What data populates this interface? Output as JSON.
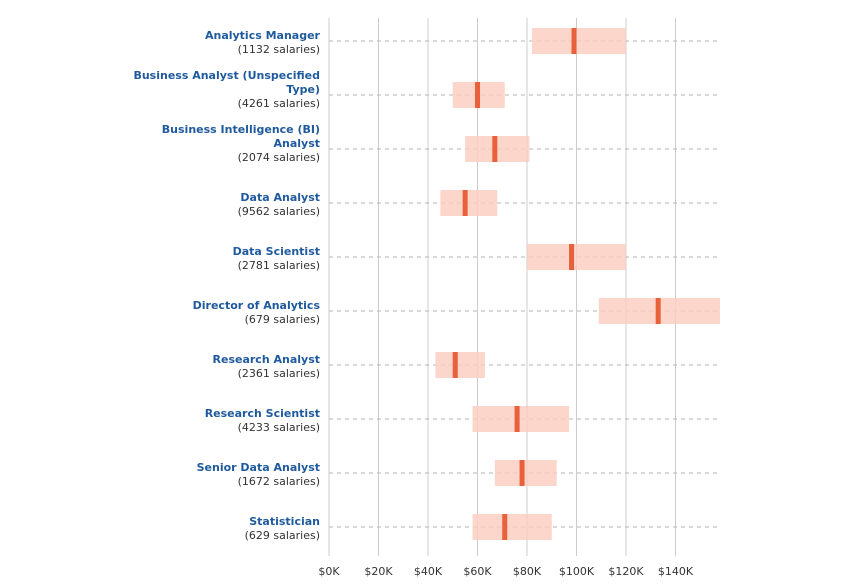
{
  "colors": {
    "range": "#fbcfc2",
    "median": "#e8613a",
    "title_text": "#1f5a9e",
    "grid": "#cccccc",
    "dashed_line": "#b5b5b5"
  },
  "chart_data": {
    "type": "range-bar",
    "xlim": [
      0,
      158000
    ],
    "xticks": [
      {
        "value": 0,
        "label": "$0K"
      },
      {
        "value": 20000,
        "label": "$20K"
      },
      {
        "value": 40000,
        "label": "$40K"
      },
      {
        "value": 60000,
        "label": "$60K"
      },
      {
        "value": 80000,
        "label": "$80K"
      },
      {
        "value": 100000,
        "label": "$100K"
      },
      {
        "value": 120000,
        "label": "$120K"
      },
      {
        "value": 140000,
        "label": "$140K"
      }
    ],
    "grid": true,
    "rows": [
      {
        "title": "Analytics Manager",
        "count": "(1132 salaries)",
        "low": 82000,
        "high": 120000,
        "median": 99000
      },
      {
        "title": "Business Analyst (Unspecified Type)",
        "count": "(4261 salaries)",
        "low": 50000,
        "high": 71000,
        "median": 60000
      },
      {
        "title": "Business Intelligence (BI) Analyst",
        "count": "(2074 salaries)",
        "low": 55000,
        "high": 81000,
        "median": 67000
      },
      {
        "title": "Data Analyst",
        "count": "(9562 salaries)",
        "low": 45000,
        "high": 68000,
        "median": 55000
      },
      {
        "title": "Data Scientist",
        "count": "(2781 salaries)",
        "low": 80000,
        "high": 120000,
        "median": 98000
      },
      {
        "title": "Director of Analytics",
        "count": "(679 salaries)",
        "low": 109000,
        "high": 158000,
        "median": 133000
      },
      {
        "title": "Research Analyst",
        "count": "(2361 salaries)",
        "low": 43000,
        "high": 63000,
        "median": 51000
      },
      {
        "title": "Research Scientist",
        "count": "(4233 salaries)",
        "low": 58000,
        "high": 97000,
        "median": 76000
      },
      {
        "title": "Senior Data Analyst",
        "count": "(1672 salaries)",
        "low": 67000,
        "high": 92000,
        "median": 78000
      },
      {
        "title": "Statistician",
        "count": "(629 salaries)",
        "low": 58000,
        "high": 90000,
        "median": 71000
      }
    ]
  }
}
